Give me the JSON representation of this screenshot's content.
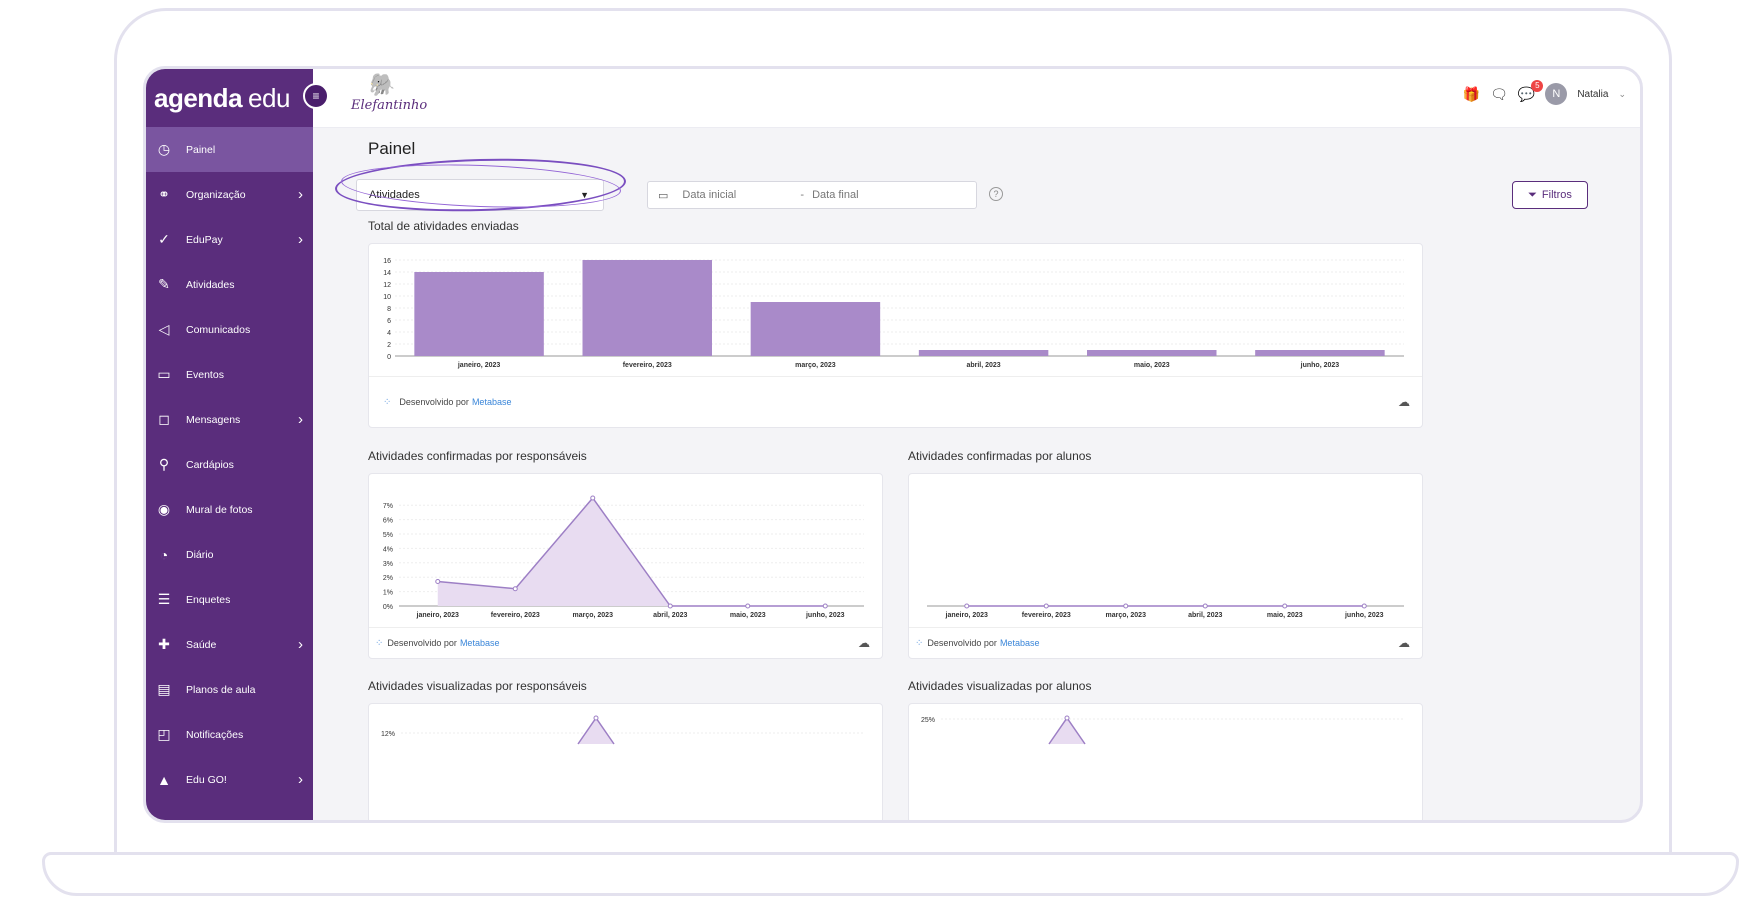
{
  "brand": {
    "bold": "agenda",
    "light": "edu"
  },
  "school_logo": {
    "name": "Elefantinho"
  },
  "sidebar": {
    "collapse_symbol": "≡",
    "items": [
      {
        "label": "Painel",
        "icon": "gauge-icon",
        "glyph": "◷",
        "active": true,
        "has_submenu": false
      },
      {
        "label": "Organização",
        "icon": "org-icon",
        "glyph": "⚭",
        "has_submenu": true
      },
      {
        "label": "EduPay",
        "icon": "check-pen-icon",
        "glyph": "✓",
        "has_submenu": true
      },
      {
        "label": "Atividades",
        "icon": "pencil-icon",
        "glyph": "✎",
        "has_submenu": false
      },
      {
        "label": "Comunicados",
        "icon": "megaphone-icon",
        "glyph": "◁",
        "has_submenu": false
      },
      {
        "label": "Eventos",
        "icon": "calendar-icon",
        "glyph": "▭",
        "has_submenu": false
      },
      {
        "label": "Mensagens",
        "icon": "chat-icon",
        "glyph": "◻",
        "has_submenu": true
      },
      {
        "label": "Cardápios",
        "icon": "cutlery-icon",
        "glyph": "⚲",
        "has_submenu": false
      },
      {
        "label": "Mural de fotos",
        "icon": "camera-icon",
        "glyph": "◉",
        "has_submenu": false
      },
      {
        "label": "Diário",
        "icon": "clock-icon",
        "glyph": "◔",
        "has_submenu": false
      },
      {
        "label": "Enquetes",
        "icon": "list-icon",
        "glyph": "☰",
        "has_submenu": false
      },
      {
        "label": "Saúde",
        "icon": "medkit-icon",
        "glyph": "✚",
        "has_submenu": true
      },
      {
        "label": "Planos de aula",
        "icon": "notebook-icon",
        "glyph": "▤",
        "has_submenu": false
      },
      {
        "label": "Notificações",
        "icon": "bell-icon",
        "glyph": "◰",
        "has_submenu": false
      },
      {
        "label": "Edu GO!",
        "icon": "edugo-icon",
        "glyph": "▲",
        "has_submenu": true
      }
    ],
    "chevron": "›"
  },
  "topbar": {
    "badge_count": "5",
    "user_initial": "N",
    "user_name": "Natalia",
    "user_caret": "⌄"
  },
  "page": {
    "title": "Painel",
    "select_value": "Atividades",
    "date_start_placeholder": "Data inicial",
    "date_separator": "-",
    "date_end_placeholder": "Data final",
    "filters_label": "Filtros",
    "help_symbol": "?"
  },
  "footer": {
    "powered_by": "Desenvolvido por",
    "metabase_link": "Metabase"
  },
  "sections": {
    "total_sent": "Total de atividades enviadas",
    "confirmed_guardians": "Atividades confirmadas por responsáveis",
    "confirmed_students": "Atividades confirmadas por alunos",
    "viewed_guardians": "Atividades visualizadas por responsáveis",
    "viewed_students": "Atividades visualizadas por alunos"
  },
  "colors": {
    "primary": "#5a2d7c",
    "bar": "#a98ac9",
    "line": "#9d7fc5",
    "area": "#e8dcf1"
  },
  "chart_data": [
    {
      "type": "bar",
      "title": "Total de atividades enviadas",
      "categories": [
        "janeiro, 2023",
        "fevereiro, 2023",
        "março, 2023",
        "abril, 2023",
        "maio, 2023",
        "junho, 2023"
      ],
      "values": [
        14,
        16,
        9,
        1,
        1,
        1
      ],
      "ylim": [
        0,
        16
      ],
      "yticks": [
        "0",
        "2",
        "4",
        "6",
        "8",
        "10",
        "12",
        "14",
        "16"
      ],
      "xlabel": "",
      "ylabel": "",
      "grid": true
    },
    {
      "type": "area",
      "title": "Atividades confirmadas por responsáveis",
      "categories": [
        "janeiro, 2023",
        "fevereiro, 2023",
        "março, 2023",
        "abril, 2023",
        "maio, 2023",
        "junho, 2023"
      ],
      "values": [
        1.7,
        1.2,
        7.5,
        0,
        0,
        0
      ],
      "ylim": [
        0,
        7.5
      ],
      "yticks": [
        "0%",
        "1%",
        "2%",
        "3%",
        "4%",
        "5%",
        "6%",
        "7%"
      ],
      "xlabel": "",
      "ylabel": "",
      "grid": true
    },
    {
      "type": "line",
      "title": "Atividades confirmadas por alunos",
      "categories": [
        "janeiro, 2023",
        "fevereiro, 2023",
        "março, 2023",
        "abril, 2023",
        "maio, 2023",
        "junho, 2023"
      ],
      "values": [
        0,
        0,
        0,
        0,
        0,
        0
      ],
      "ylim": [
        0,
        1
      ],
      "yticks": [],
      "xlabel": "",
      "ylabel": "",
      "grid": false
    },
    {
      "type": "area",
      "title": "Atividades visualizadas por responsáveis",
      "categories": [],
      "values": [],
      "yticks": [
        "12%"
      ],
      "xlabel": "",
      "ylabel": "",
      "grid": true
    },
    {
      "type": "area",
      "title": "Atividades visualizadas por alunos",
      "categories": [],
      "values": [],
      "yticks": [
        "25%"
      ],
      "xlabel": "",
      "ylabel": "",
      "grid": true
    }
  ]
}
